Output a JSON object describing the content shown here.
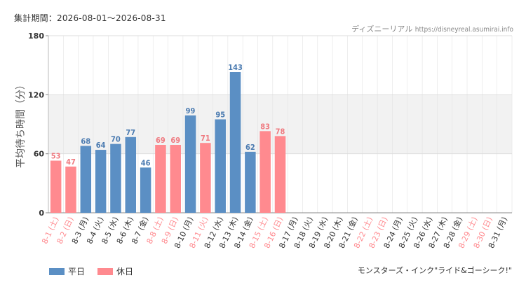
{
  "header": {
    "period": "集計期間：2026-08-01～2026-08-31",
    "site_name": "ディズニーリアル",
    "site_url": "https://disneyreal.asumirai.info"
  },
  "footer": {
    "attraction": "モンスターズ・インク\"ライド&ゴーシーク!\""
  },
  "colors": {
    "weekday": "#5b8fc4",
    "holiday": "#ff8a8f",
    "weekday_label": "#4a7ab0",
    "holiday_label": "#ef7a80",
    "axis_text": "#333333",
    "band": "#f2f2f2",
    "grid": "#e3e3e3"
  },
  "chart_data": {
    "type": "bar",
    "ylabel": "平均待ち時間（分）",
    "ylim": [
      0,
      180
    ],
    "yticks": [
      0,
      60,
      120,
      180
    ],
    "band": [
      60,
      120
    ],
    "legend_position": "bottom-left",
    "series": [
      {
        "name": "平日",
        "key": "weekday"
      },
      {
        "name": "休日",
        "key": "holiday"
      }
    ],
    "categories": [
      "8-1 (土)",
      "8-2 (日)",
      "8-3 (月)",
      "8-4 (火)",
      "8-5 (水)",
      "8-6 (木)",
      "8-7 (金)",
      "8-8 (土)",
      "8-9 (日)",
      "8-10 (月)",
      "8-11 (火)",
      "8-12 (水)",
      "8-13 (木)",
      "8-14 (金)",
      "8-15 (土)",
      "8-16 (日)",
      "8-17 (月)",
      "8-18 (火)",
      "8-19 (水)",
      "8-20 (木)",
      "8-21 (金)",
      "8-22 (土)",
      "8-23 (日)",
      "8-24 (月)",
      "8-25 (火)",
      "8-26 (水)",
      "8-27 (木)",
      "8-28 (金)",
      "8-29 (土)",
      "8-30 (日)",
      "8-31 (月)"
    ],
    "values": [
      53,
      47,
      68,
      64,
      70,
      77,
      46,
      69,
      69,
      99,
      71,
      95,
      143,
      62,
      83,
      78,
      null,
      null,
      null,
      null,
      null,
      null,
      null,
      null,
      null,
      null,
      null,
      null,
      null,
      null,
      null
    ],
    "day_type": [
      "holiday",
      "holiday",
      "weekday",
      "weekday",
      "weekday",
      "weekday",
      "weekday",
      "holiday",
      "holiday",
      "weekday",
      "holiday",
      "weekday",
      "weekday",
      "weekday",
      "holiday",
      "holiday",
      "weekday",
      "weekday",
      "weekday",
      "weekday",
      "weekday",
      "holiday",
      "holiday",
      "weekday",
      "weekday",
      "weekday",
      "weekday",
      "weekday",
      "holiday",
      "holiday",
      "weekday"
    ]
  }
}
